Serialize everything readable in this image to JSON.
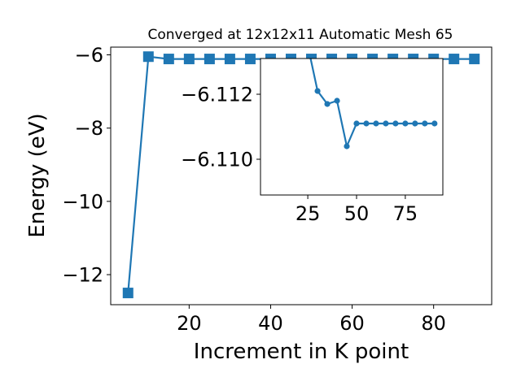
{
  "chart_data": [
    {
      "type": "line",
      "title": "Converged at 12x12x11 Automatic Mesh 65",
      "xlabel": "Increment in K point",
      "ylabel": "Energy (eV)",
      "xlim": [
        0.75,
        94.25
      ],
      "ylim": [
        -12.82,
        -5.79
      ],
      "xticks": [
        20,
        40,
        60,
        80
      ],
      "yticks": [
        -12,
        -10,
        -8,
        -6
      ],
      "xtick_labels": [
        "20",
        "40",
        "60",
        "80"
      ],
      "ytick_labels": [
        "−12",
        "−10",
        "−8",
        "−6"
      ],
      "marker": "square",
      "color": "#1f77b4",
      "series": [
        {
          "x": [
            5,
            10,
            15,
            20,
            25,
            30,
            35,
            40,
            45,
            50,
            55,
            60,
            65,
            70,
            75,
            80,
            85,
            90
          ],
          "y": [
            -12.5,
            -6.05,
            -6.113,
            -6.113,
            -6.113,
            -6.113,
            -6.113,
            -6.113,
            -6.113,
            -6.113,
            -6.113,
            -6.113,
            -6.113,
            -6.113,
            -6.113,
            -6.113,
            -6.113,
            -6.113
          ]
        }
      ]
    },
    {
      "type": "line",
      "title": "",
      "xlim": [
        0.75,
        94.25
      ],
      "ylim": [
        -6.1089,
        -6.1131
      ],
      "xticks": [
        25,
        50,
        75
      ],
      "yticks": [
        -6.112,
        -6.11
      ],
      "xtick_labels": [
        "25",
        "50",
        "75"
      ],
      "ytick_labels": [
        "−6.112",
        "−6.110"
      ],
      "marker": "circle",
      "color": "#1f77b4",
      "series": [
        {
          "x": [
            25,
            30,
            35,
            40,
            45,
            50,
            55,
            60,
            65,
            70,
            75,
            80,
            85,
            90
          ],
          "y": [
            -6.1135,
            -6.1121,
            -6.1117,
            -6.1118,
            -6.1104,
            -6.1111,
            -6.1111,
            -6.1111,
            -6.1111,
            -6.1111,
            -6.1111,
            -6.1111,
            -6.1111,
            -6.1111
          ]
        }
      ]
    }
  ]
}
